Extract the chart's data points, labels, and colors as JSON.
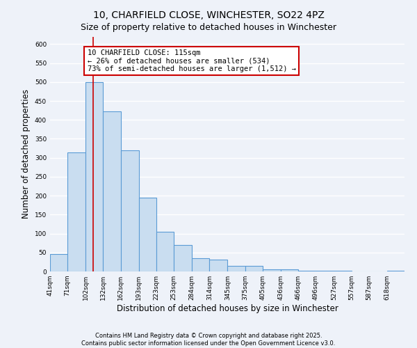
{
  "title": "10, CHARFIELD CLOSE, WINCHESTER, SO22 4PZ",
  "subtitle": "Size of property relative to detached houses in Winchester",
  "xlabel": "Distribution of detached houses by size in Winchester",
  "ylabel": "Number of detached properties",
  "bar_edges": [
    41,
    71,
    102,
    132,
    162,
    193,
    223,
    253,
    284,
    314,
    345,
    375,
    405,
    436,
    466,
    496,
    527,
    557,
    587,
    618,
    648
  ],
  "bar_heights": [
    46,
    314,
    499,
    423,
    319,
    195,
    105,
    70,
    35,
    32,
    14,
    14,
    5,
    5,
    2,
    2,
    1,
    0,
    0,
    1
  ],
  "bar_color": "#c9ddf0",
  "bar_edge_color": "#5b9bd5",
  "bar_linewidth": 0.8,
  "vline_x": 115,
  "vline_color": "#cc0000",
  "vline_linewidth": 1.2,
  "annotation_line1": "10 CHARFIELD CLOSE: 115sqm",
  "annotation_line2": "← 26% of detached houses are smaller (534)",
  "annotation_line3": "73% of semi-detached houses are larger (1,512) →",
  "annotation_box_fc": "white",
  "annotation_box_ec": "#cc0000",
  "ylim": [
    0,
    620
  ],
  "yticks": [
    0,
    50,
    100,
    150,
    200,
    250,
    300,
    350,
    400,
    450,
    500,
    550,
    600
  ],
  "background_color": "#eef2f9",
  "grid_color": "white",
  "grid_linewidth": 1.0,
  "title_fontsize": 10,
  "subtitle_fontsize": 9,
  "tick_label_fontsize": 6.5,
  "axis_label_fontsize": 8.5,
  "annotation_fontsize": 7.5,
  "footnote": "Contains HM Land Registry data © Crown copyright and database right 2025.\nContains public sector information licensed under the Open Government Licence v3.0.",
  "footnote_fontsize": 6.0
}
